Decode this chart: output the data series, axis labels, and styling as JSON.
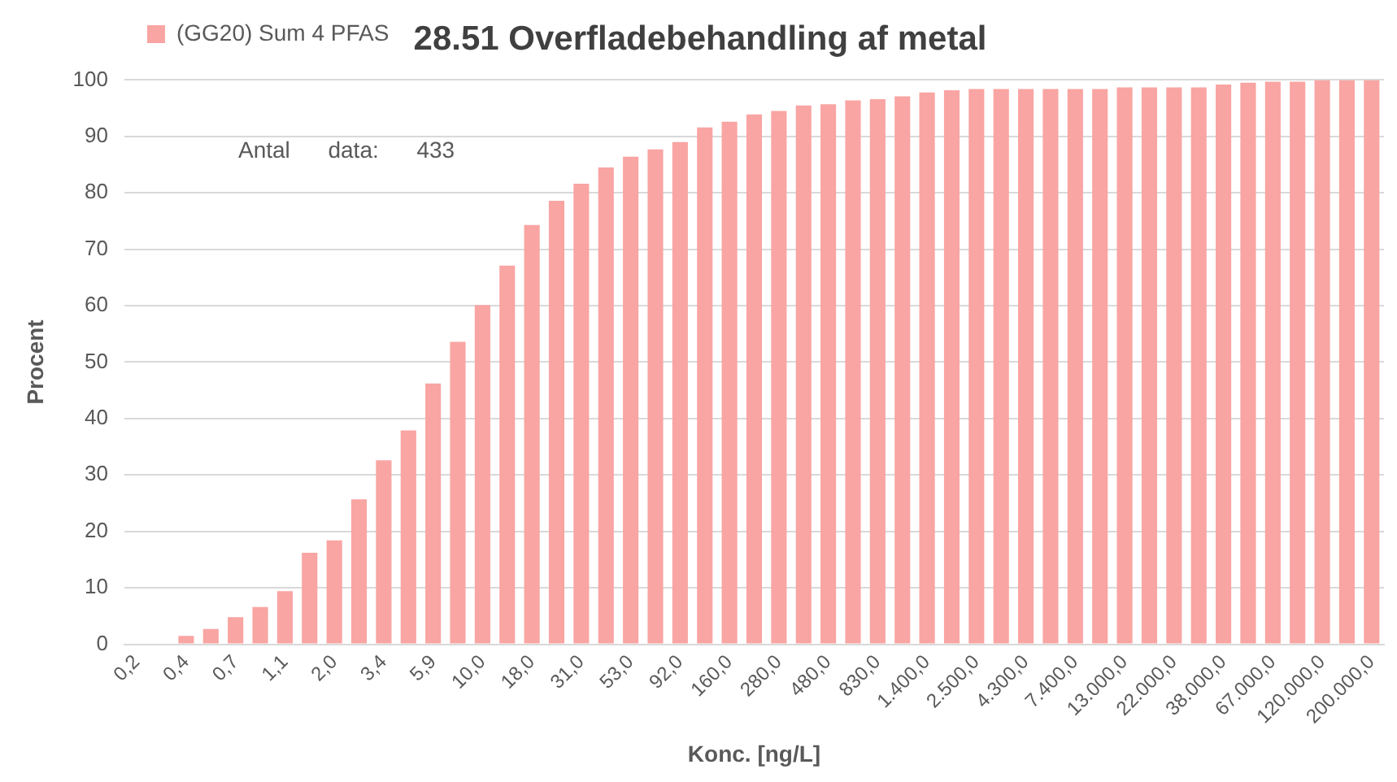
{
  "chart_data": {
    "type": "bar",
    "title": "28.51 Overfladebehandling af metal",
    "xlabel": "Konc. [ng/L]",
    "ylabel": "Procent",
    "categories": [
      "0,2",
      null,
      "0,4",
      null,
      "0,7",
      null,
      "1,1",
      null,
      "2,0",
      null,
      "3,4",
      null,
      "5,9",
      null,
      "10,0",
      null,
      "18,0",
      null,
      "31,0",
      null,
      "53,0",
      null,
      "92,0",
      null,
      "160,0",
      null,
      "280,0",
      null,
      "480,0",
      null,
      "830,0",
      null,
      "1.400,0",
      null,
      "2.500,0",
      null,
      "4.300,0",
      null,
      "7.400,0",
      null,
      "13.000,0",
      null,
      "22.000,0",
      null,
      "38.000,0",
      null,
      "67.000,0",
      null,
      "120.000,0",
      null,
      "200.000,0"
    ],
    "series": [
      {
        "name": "(GG20) Sum 4 PFAS",
        "color": "#f9a5a3",
        "values": [
          0,
          0,
          1.5,
          2.7,
          4.8,
          6.6,
          9.4,
          16.2,
          18.4,
          25.7,
          32.6,
          37.9,
          46.2,
          53.6,
          60.1,
          67.1,
          74.3,
          78.6,
          81.6,
          84.5,
          86.4,
          87.7,
          89.0,
          91.6,
          92.6,
          93.9,
          94.5,
          95.5,
          95.7,
          96.4,
          96.6,
          97.1,
          97.8,
          98.2,
          98.4,
          98.4,
          98.4,
          98.4,
          98.4,
          98.4,
          98.7,
          98.7,
          98.7,
          98.7,
          99.2,
          99.5,
          99.7,
          99.7,
          100,
          100,
          100
        ]
      }
    ],
    "ylim": [
      0,
      100
    ],
    "yticks": [
      0,
      10,
      20,
      30,
      40,
      50,
      60,
      70,
      80,
      90,
      100
    ],
    "grid": "y",
    "legend": "top left",
    "annotations": [
      "Antal data:     433"
    ]
  }
}
